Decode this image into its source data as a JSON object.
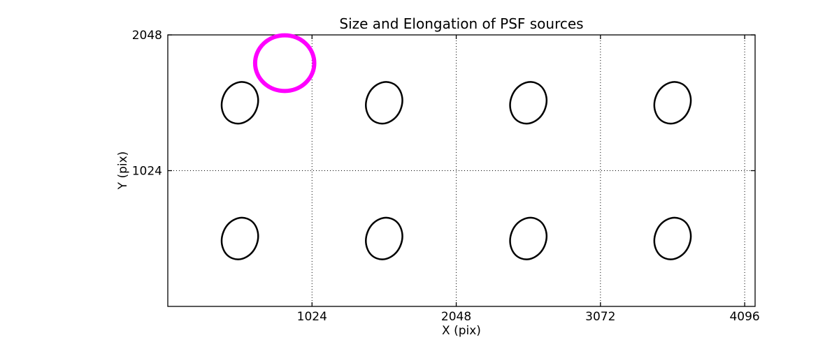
{
  "chart_data": {
    "type": "scatter",
    "title": "Size and Elongation of PSF sources",
    "xlabel": "X (pix)",
    "ylabel": "Y (pix)",
    "xlim": [
      0,
      4170
    ],
    "ylim": [
      0,
      2048
    ],
    "xticks": [
      1024,
      2048,
      3072,
      4096
    ],
    "yticks": [
      1024,
      2048
    ],
    "grid": {
      "on": true,
      "style": "dotted",
      "color": "#000000"
    },
    "legend_position": "none",
    "frame_color": "#000000",
    "background_color": "#ffffff",
    "psf_sources": {
      "color": "#000000",
      "line_width": 2.5,
      "x_centers": [
        512,
        1536,
        2560,
        3584
      ],
      "y_centers": [
        1536,
        512
      ],
      "semi_major": 155,
      "semi_minor": 130,
      "angle_deg": 70
    },
    "reference_circle": {
      "cx": 830,
      "cy": 1835,
      "r": 210,
      "color": "#FF00FF",
      "line_width": 6
    }
  }
}
